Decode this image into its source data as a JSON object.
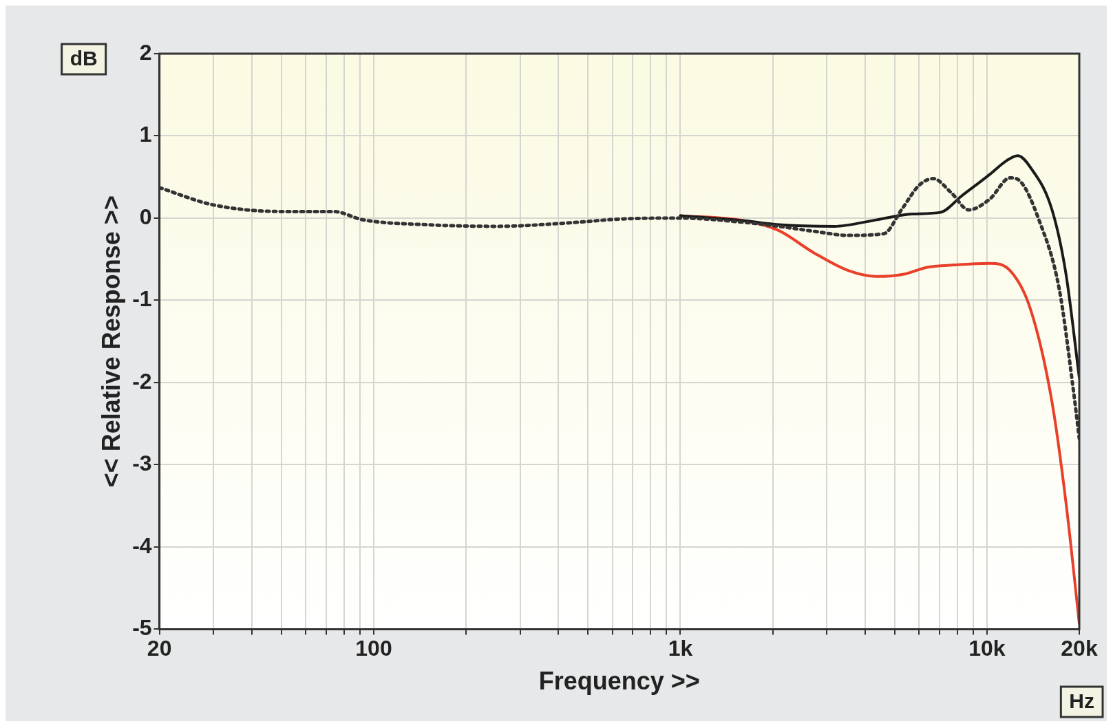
{
  "chart_data": {
    "type": "line",
    "xlabel": "Frequency >>",
    "ylabel": "<< Relative Response >>",
    "annotations": [
      "dB",
      "Hz"
    ],
    "log": "x",
    "grid": true,
    "legend": false,
    "marker": "none",
    "xlim": [
      20,
      20000
    ],
    "xticks": [
      20,
      {
        "value": 30,
        "label": null
      },
      {
        "value": 40,
        "label": null
      },
      {
        "value": 50,
        "label": null
      },
      {
        "value": 60,
        "label": null
      },
      {
        "value": 70,
        "label": null
      },
      {
        "value": 80,
        "label": null
      },
      {
        "value": 90,
        "label": null
      },
      100,
      {
        "value": 200,
        "label": null
      },
      {
        "value": 300,
        "label": null
      },
      {
        "value": 400,
        "label": null
      },
      {
        "value": 500,
        "label": null
      },
      {
        "value": 600,
        "label": null
      },
      {
        "value": 700,
        "label": null
      },
      {
        "value": 800,
        "label": null
      },
      {
        "value": 900,
        "label": null
      },
      {
        "value": 1000,
        "label": "1k"
      },
      {
        "value": 2000,
        "label": null
      },
      {
        "value": 3000,
        "label": null
      },
      {
        "value": 4000,
        "label": null
      },
      {
        "value": 5000,
        "label": null
      },
      {
        "value": 6000,
        "label": null
      },
      {
        "value": 7000,
        "label": null
      },
      {
        "value": 8000,
        "label": null
      },
      {
        "value": 9000,
        "label": null
      },
      {
        "value": 10000,
        "label": "10k"
      },
      {
        "value": 20000,
        "label": "20k"
      }
    ],
    "ylim": [
      -5,
      2
    ],
    "yticks": [
      -5,
      -4,
      -3,
      -2,
      -1,
      0,
      1,
      2
    ],
    "series": [
      {
        "color": "#333333",
        "line_style": "dotted",
        "x": [
          20,
          30,
          51,
          74,
          92,
          148,
          251,
          425,
          650,
          1000,
          1600,
          2090,
          2720,
          3540,
          4610,
          5260,
          6010,
          6680,
          7640,
          8720,
          10200,
          11900,
          12900,
          14700,
          17200,
          19100,
          20000
        ],
        "values": [
          0.37,
          0.16,
          0.08,
          0.08,
          -0.02,
          -0.08,
          -0.1,
          -0.06,
          -0.01,
          0.0,
          -0.05,
          -0.1,
          -0.16,
          -0.21,
          -0.19,
          0.1,
          0.4,
          0.48,
          0.31,
          0.1,
          0.23,
          0.49,
          0.44,
          0.0,
          -0.86,
          -2.07,
          -2.68
        ]
      },
      {
        "color": "#1a1a1a",
        "line_style": "solid",
        "x": [
          1000,
          1600,
          2090,
          3180,
          4380,
          5700,
          7050,
          8270,
          10200,
          11600,
          12600,
          13900,
          16300,
          18100,
          20000
        ],
        "values": [
          0.03,
          -0.03,
          -0.08,
          -0.1,
          -0.02,
          0.05,
          0.07,
          0.27,
          0.53,
          0.7,
          0.76,
          0.61,
          0.1,
          -0.68,
          -1.94
        ]
      },
      {
        "color": "#e8402a",
        "line_style": "solid",
        "x": [
          1000,
          1600,
          2090,
          2720,
          3540,
          4380,
          5400,
          6340,
          7840,
          10200,
          11900,
          13900,
          16300,
          18100,
          20000
        ],
        "values": [
          0.03,
          -0.03,
          -0.15,
          -0.42,
          -0.64,
          -0.71,
          -0.68,
          -0.6,
          -0.57,
          -0.55,
          -0.64,
          -1.12,
          -2.24,
          -3.46,
          -4.93
        ]
      }
    ]
  }
}
